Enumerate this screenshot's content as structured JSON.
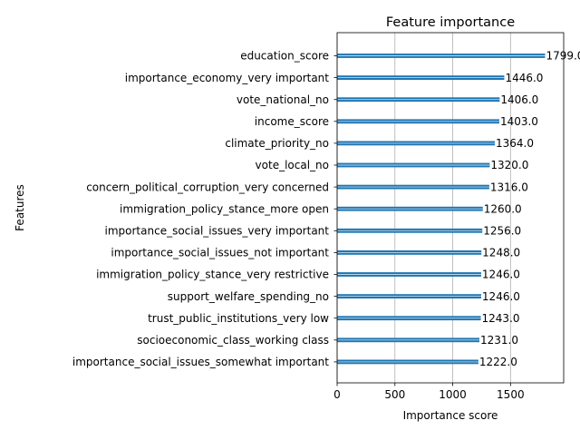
{
  "chart_data": {
    "type": "bar",
    "orientation": "horizontal",
    "title": "Feature importance",
    "xlabel": "Importance score",
    "ylabel": "Features",
    "xlim": [
      0,
      1960
    ],
    "xticks": [
      0,
      500,
      1000,
      1500
    ],
    "grid": true,
    "legend": "none",
    "bar_color": "#1f77b4",
    "categories": [
      "education_score",
      "importance_economy_very important",
      "vote_national_no",
      "income_score",
      "climate_priority_no",
      "vote_local_no",
      "concern_political_corruption_very concerned",
      "immigration_policy_stance_more open",
      "importance_social_issues_very important",
      "importance_social_issues_not important",
      "immigration_policy_stance_very restrictive",
      "support_welfare_spending_no",
      "trust_public_institutions_very low",
      "socioeconomic_class_working class",
      "importance_social_issues_somewhat important"
    ],
    "values": [
      1799,
      1446,
      1406,
      1403,
      1364,
      1320,
      1316,
      1260,
      1256,
      1248,
      1246,
      1246,
      1243,
      1231,
      1222
    ],
    "data_labels": [
      "1799.0",
      "1446.0",
      "1406.0",
      "1403.0",
      "1364.0",
      "1320.0",
      "1316.0",
      "1260.0",
      "1256.0",
      "1248.0",
      "1246.0",
      "1246.0",
      "1243.0",
      "1231.0",
      "1222.0"
    ]
  }
}
